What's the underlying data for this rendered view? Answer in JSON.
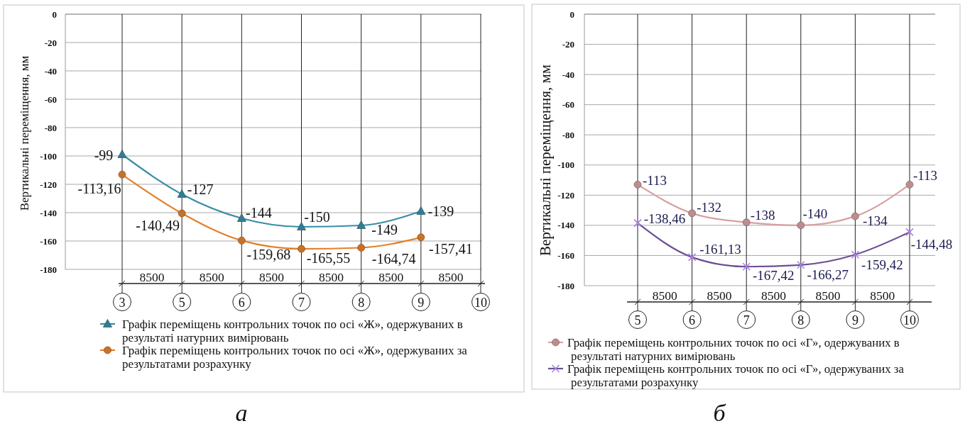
{
  "chart_data": [
    {
      "type": "line",
      "title": "а",
      "ylabel": "Вертикальні переміщення, мм",
      "categories": [
        "3",
        "5",
        "6",
        "7",
        "8",
        "9",
        "10"
      ],
      "ylim": [
        -180,
        0
      ],
      "yticks": [
        0,
        -20,
        -40,
        -60,
        -80,
        -100,
        -120,
        -140,
        -160,
        -180
      ],
      "grid": true,
      "legend": "bottom",
      "annotations": [
        "8500",
        "8500",
        "8500",
        "8500",
        "8500",
        "8500"
      ],
      "series": [
        {
          "name": "Графік переміщень контрольних точок по осі «Ж», одержуваних в результаті натурних вимірювань",
          "color": "#3a8ea6",
          "marker": "triangle",
          "values": [
            -99,
            -127,
            -144,
            -150,
            -149,
            -139,
            null
          ],
          "value_labels": [
            "-99",
            "-127",
            "-144",
            "-150",
            "-149",
            "-139",
            null
          ]
        },
        {
          "name": "Графік переміщень контрольних точок по осі «Ж», одержуваних за результатами розрахунку",
          "color": "#e3812c",
          "marker": "circle",
          "values": [
            -113.16,
            -140.49,
            -159.68,
            -165.55,
            -164.74,
            -157.41,
            null
          ],
          "value_labels": [
            "-113,16",
            "-140,49",
            "-159,68",
            "-165,55",
            "-164,74",
            "-157,41",
            null
          ]
        }
      ]
    },
    {
      "type": "line",
      "title": "б",
      "ylabel": "Вертикальні переміщення, мм",
      "categories": [
        "5",
        "6",
        "7",
        "8",
        "9",
        "10"
      ],
      "ylim": [
        -180,
        0
      ],
      "yticks": [
        0,
        -20,
        -40,
        -60,
        -80,
        -100,
        -120,
        -140,
        -160,
        -180
      ],
      "grid": true,
      "legend": "bottom",
      "annotations": [
        "8500",
        "8500",
        "8500",
        "8500",
        "8500"
      ],
      "series": [
        {
          "name": "Графік переміщень контрольних точок по осі «Г», одержуваних в результаті натурних вимірювань",
          "color": "#d6a0a0",
          "marker": "circle",
          "values": [
            -113,
            -132,
            -138,
            -140,
            -134,
            -113
          ],
          "value_labels": [
            "-113",
            "-132",
            "-138",
            "-140",
            "-134",
            "-113"
          ]
        },
        {
          "name": "Графік переміщень контрольних точок по осі «Г», одержуваних за результатами розрахунку",
          "color": "#6c5093",
          "marker": "cross",
          "values": [
            -138.46,
            -161.13,
            -167.42,
            -166.27,
            -159.42,
            -144.48
          ],
          "value_labels": [
            "-138,46",
            "-161,13",
            "-167,42",
            "-166,27",
            "-159,42",
            "-144,48"
          ]
        }
      ]
    }
  ]
}
